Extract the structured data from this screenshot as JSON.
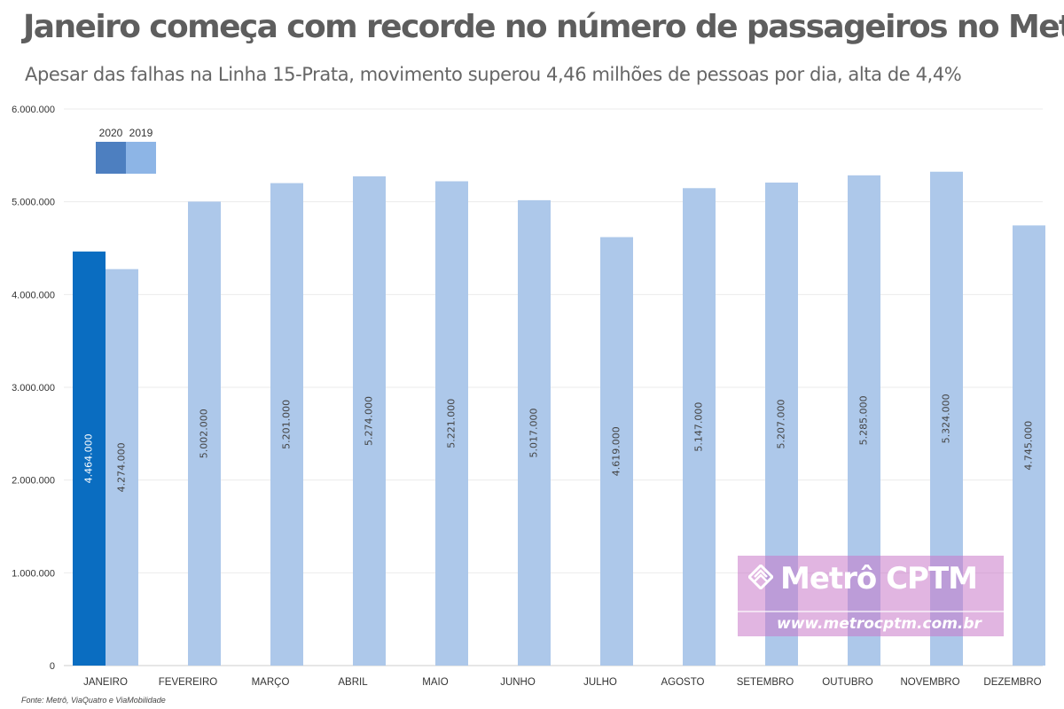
{
  "header": {
    "title": "Janeiro começa com recorde no número de passageiros no Metrô",
    "subtitle": "Apesar das falhas na Linha 15-Prata, movimento superou 4,46 milhões de pessoas por dia, alta de 4,4%"
  },
  "source": "Fonte: Metrô, ViaQuatro e ViaMobilidade",
  "watermark": {
    "name": "Metrô CPTM",
    "url": "www.metrocptm.com.br"
  },
  "colors": {
    "series_2020": "#0a6dc1",
    "series_2019": "#adc8ea",
    "legend_2020": "#4d7fc0",
    "legend_2019": "#8db5e6"
  },
  "chart_data": {
    "type": "bar",
    "title": "Janeiro começa com recorde no número de passageiros no Metrô",
    "xlabel": "",
    "ylabel": "",
    "ylim": [
      0,
      6000000
    ],
    "grid": true,
    "legend_position": "top-left",
    "categories": [
      "JANEIRO",
      "FEVEREIRO",
      "MARÇO",
      "ABRIL",
      "MAIO",
      "JUNHO",
      "JULHO",
      "AGOSTO",
      "SETEMBRO",
      "OUTUBRO",
      "NOVEMBRO",
      "DEZEMBRO"
    ],
    "yticks": [
      0,
      1000000,
      2000000,
      3000000,
      4000000,
      5000000,
      6000000
    ],
    "ytick_labels": [
      "0",
      "1.000.000",
      "2.000.000",
      "3.000.000",
      "4.000.000",
      "5.000.000",
      "6.000.000"
    ],
    "series": [
      {
        "name": "2020",
        "values": [
          4464000,
          null,
          null,
          null,
          null,
          null,
          null,
          null,
          null,
          null,
          null,
          null
        ],
        "labels": [
          "4.464.000",
          "",
          "",
          "",
          "",
          "",
          "",
          "",
          "",
          "",
          "",
          ""
        ]
      },
      {
        "name": "2019",
        "values": [
          4274000,
          5002000,
          5201000,
          5274000,
          5221000,
          5017000,
          4619000,
          5147000,
          5207000,
          5285000,
          5324000,
          4745000
        ],
        "labels": [
          "4.274.000",
          "5.002.000",
          "5.201.000",
          "5.274.000",
          "5.221.000",
          "5.017.000",
          "4.619.000",
          "5.147.000",
          "5.207.000",
          "5.285.000",
          "5.324.000",
          "4.745.000"
        ]
      }
    ]
  }
}
